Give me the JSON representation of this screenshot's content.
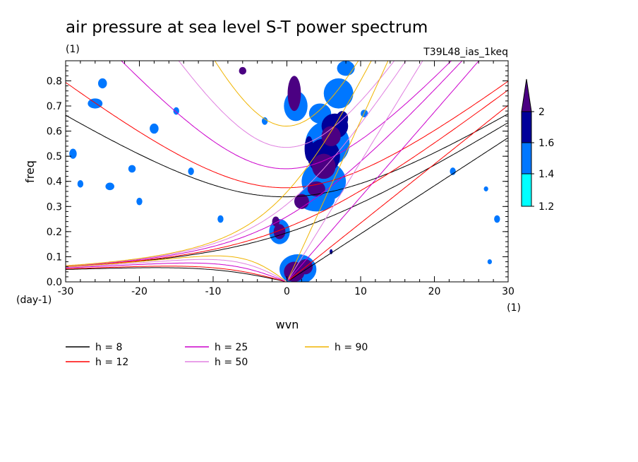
{
  "header": {
    "title": "air pressure at sea level S-T power spectrum",
    "units": "(1)",
    "run_id": "T39L48_ias_1keq"
  },
  "chart_data": {
    "type": "heatmap",
    "title": "air pressure at sea level S-T power spectrum",
    "xlabel": "wvn",
    "ylabel": "freq",
    "x_units": "(1)",
    "y_units": "(day-1)",
    "xlim": [
      -30,
      30
    ],
    "ylim": [
      0,
      0.88
    ],
    "x_ticks": [
      -30,
      -20,
      -10,
      0,
      10,
      20,
      30
    ],
    "y_ticks": [
      0.0,
      0.1,
      0.2,
      0.3,
      0.4,
      0.5,
      0.6,
      0.7,
      0.8
    ],
    "x_tick_labels": [
      "-30",
      "-20",
      "-10",
      "0",
      "10",
      "20",
      "30"
    ],
    "y_tick_labels": [
      "0.0",
      "0.1",
      "0.2",
      "0.3",
      "0.4",
      "0.5",
      "0.6",
      "0.7",
      "0.8"
    ],
    "colorbar": {
      "levels": [
        1.2,
        1.4,
        1.6,
        2
      ],
      "level_labels": [
        "1.2",
        "1.4",
        "1.6",
        "2"
      ],
      "colors": [
        "#00ffff",
        "#0077ff",
        "#000099",
        "#4b0082"
      ]
    },
    "dispersion_curves": [
      {
        "name": "h =  8",
        "h": 8,
        "color": "#000000"
      },
      {
        "name": "h = 12",
        "h": 12,
        "color": "#ff0000"
      },
      {
        "name": "h = 25",
        "h": 25,
        "color": "#cc00cc"
      },
      {
        "name": "h = 50",
        "h": 50,
        "color": "#e080e0"
      },
      {
        "name": "h = 90",
        "h": 90,
        "color": "#f0b400"
      }
    ],
    "blobs": [
      {
        "x": 1.0,
        "y": 0.75,
        "rx": 0.9,
        "ry": 0.07,
        "level": 3
      },
      {
        "x": -1.0,
        "y": 0.2,
        "rx": 0.8,
        "ry": 0.03,
        "level": 3
      },
      {
        "x": -1.5,
        "y": 0.24,
        "rx": 0.5,
        "ry": 0.02,
        "level": 3
      },
      {
        "x": 1.0,
        "y": 0.04,
        "rx": 1.4,
        "ry": 0.04,
        "level": 3
      },
      {
        "x": 2.5,
        "y": 0.06,
        "rx": 1.0,
        "ry": 0.03,
        "level": 3
      },
      {
        "x": 2.0,
        "y": 0.32,
        "rx": 1.0,
        "ry": 0.03,
        "level": 3
      },
      {
        "x": 5.0,
        "y": 0.46,
        "rx": 1.6,
        "ry": 0.05,
        "level": 3
      },
      {
        "x": 4.0,
        "y": 0.37,
        "rx": 1.2,
        "ry": 0.03,
        "level": 3
      },
      {
        "x": 6.0,
        "y": 0.58,
        "rx": 1.3,
        "ry": 0.04,
        "level": 3
      },
      {
        "x": 7.5,
        "y": 0.65,
        "rx": 0.8,
        "ry": 0.03,
        "level": 2
      },
      {
        "x": 8.0,
        "y": 0.85,
        "rx": 1.2,
        "ry": 0.03,
        "level": 1
      },
      {
        "x": 3.0,
        "y": 0.53,
        "rx": 0.6,
        "ry": 0.05,
        "level": 2
      },
      {
        "x": 5.0,
        "y": 0.4,
        "rx": 3.0,
        "ry": 0.08,
        "level": 1
      },
      {
        "x": 5.5,
        "y": 0.55,
        "rx": 3.0,
        "ry": 0.09,
        "level": 1
      },
      {
        "x": 7.0,
        "y": 0.75,
        "rx": 2.0,
        "ry": 0.06,
        "level": 1
      },
      {
        "x": 4.0,
        "y": 0.33,
        "rx": 2.5,
        "ry": 0.05,
        "level": 1
      },
      {
        "x": 5.0,
        "y": 0.5,
        "rx": 2.2,
        "ry": 0.07,
        "level": 2
      },
      {
        "x": 6.5,
        "y": 0.62,
        "rx": 1.8,
        "ry": 0.05,
        "level": 2
      },
      {
        "x": 1.2,
        "y": 0.7,
        "rx": 1.6,
        "ry": 0.06,
        "level": 1
      },
      {
        "x": -1.0,
        "y": 0.2,
        "rx": 1.4,
        "ry": 0.05,
        "level": 1
      },
      {
        "x": 1.5,
        "y": 0.05,
        "rx": 2.5,
        "ry": 0.06,
        "level": 1
      },
      {
        "x": 4.5,
        "y": 0.67,
        "rx": 1.5,
        "ry": 0.04,
        "level": 1
      },
      {
        "x": -26.0,
        "y": 0.71,
        "rx": 1.0,
        "ry": 0.02,
        "level": 1
      },
      {
        "x": -25.0,
        "y": 0.79,
        "rx": 0.6,
        "ry": 0.02,
        "level": 1
      },
      {
        "x": -29.0,
        "y": 0.51,
        "rx": 0.5,
        "ry": 0.02,
        "level": 1
      },
      {
        "x": -28.0,
        "y": 0.39,
        "rx": 0.4,
        "ry": 0.015,
        "level": 1
      },
      {
        "x": -24.0,
        "y": 0.38,
        "rx": 0.6,
        "ry": 0.015,
        "level": 1
      },
      {
        "x": -18.0,
        "y": 0.61,
        "rx": 0.6,
        "ry": 0.02,
        "level": 1
      },
      {
        "x": -21.0,
        "y": 0.45,
        "rx": 0.5,
        "ry": 0.015,
        "level": 1
      },
      {
        "x": -15.0,
        "y": 0.68,
        "rx": 0.4,
        "ry": 0.015,
        "level": 1
      },
      {
        "x": -20.0,
        "y": 0.32,
        "rx": 0.4,
        "ry": 0.015,
        "level": 1
      },
      {
        "x": -6.0,
        "y": 0.84,
        "rx": 0.5,
        "ry": 0.015,
        "level": 3
      },
      {
        "x": -13.0,
        "y": 0.44,
        "rx": 0.4,
        "ry": 0.015,
        "level": 1
      },
      {
        "x": -9.0,
        "y": 0.25,
        "rx": 0.4,
        "ry": 0.015,
        "level": 1
      },
      {
        "x": -3.0,
        "y": 0.64,
        "rx": 0.4,
        "ry": 0.015,
        "level": 1
      },
      {
        "x": 10.5,
        "y": 0.67,
        "rx": 0.5,
        "ry": 0.015,
        "level": 1
      },
      {
        "x": 22.5,
        "y": 0.44,
        "rx": 0.4,
        "ry": 0.015,
        "level": 1
      },
      {
        "x": 28.5,
        "y": 0.25,
        "rx": 0.4,
        "ry": 0.015,
        "level": 1
      },
      {
        "x": 27.0,
        "y": 0.37,
        "rx": 0.3,
        "ry": 0.01,
        "level": 1
      },
      {
        "x": 27.5,
        "y": 0.08,
        "rx": 0.3,
        "ry": 0.01,
        "level": 1
      },
      {
        "x": 6.0,
        "y": 0.12,
        "rx": 0.2,
        "ry": 0.01,
        "level": 2
      }
    ]
  }
}
